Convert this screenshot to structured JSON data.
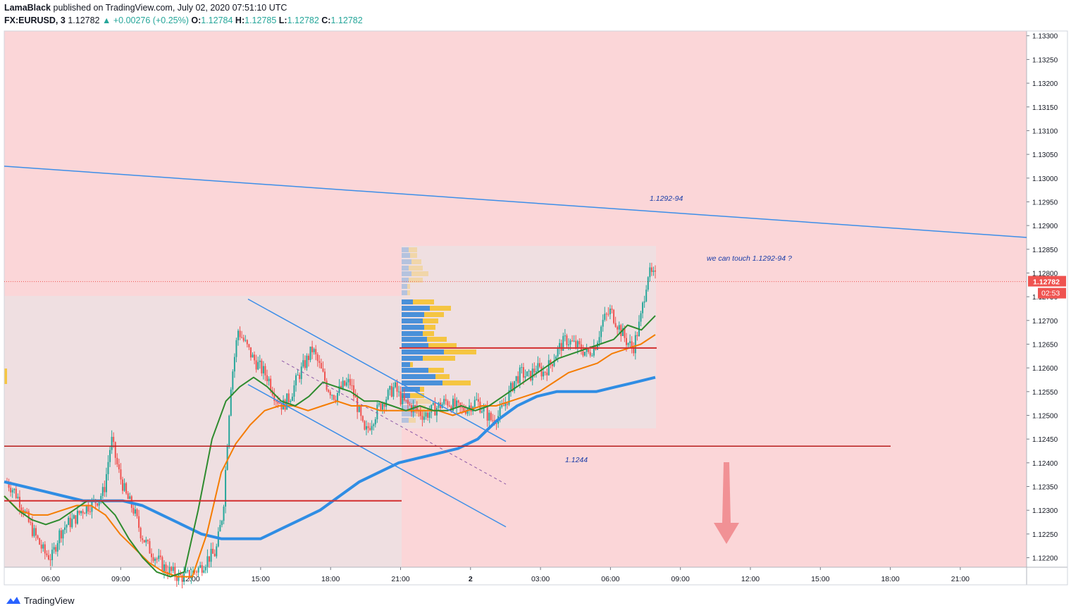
{
  "header": {
    "author": "LamaBlack",
    "published_text": "published on TradingView.com, July 02, 2020 07:51:10 UTC",
    "symbol": "FX:EURUSD, 3",
    "last": "1.12782",
    "change": "+0.00276 (+0.25%)",
    "o_label": "O:",
    "o_value": "1.12784",
    "h_label": "H:",
    "h_value": "1.12785",
    "l_label": "L:",
    "l_value": "1.12782",
    "c_label": "C:",
    "c_value": "1.12782"
  },
  "footer": {
    "brand": "TradingView"
  },
  "colors": {
    "background": "#fbd6d8",
    "up": "#26a69a",
    "down": "#ef5350",
    "trendline": "#3c8ee8",
    "ma_fast": "#2e8b2e",
    "ma_mid": "#f57c00",
    "ma_slow": "#2f8de4",
    "level": "#d32f2f",
    "level_dark": "#b71c1c",
    "price_tag": "#ef5350",
    "vp_blue": "#4a90d9",
    "vp_yellow": "#f5c542"
  },
  "chart_data": {
    "type": "candlestick",
    "y_range": [
      1.1218,
      1.1331
    ],
    "y_ticks": [
      "1.13300",
      "1.13250",
      "1.13200",
      "1.13150",
      "1.13100",
      "1.13050",
      "1.13000",
      "1.12950",
      "1.12900",
      "1.12850",
      "1.12800",
      "1.12750",
      "1.12700",
      "1.12650",
      "1.12600",
      "1.12550",
      "1.12500",
      "1.12450",
      "1.12400",
      "1.12350",
      "1.12300",
      "1.12250",
      "1.12200"
    ],
    "x_ticks": [
      "06:00",
      "09:00",
      "12:00",
      "15:00",
      "18:00",
      "21:00",
      "2",
      "03:00",
      "06:00",
      "09:00",
      "12:00",
      "15:00",
      "18:00",
      "21:00"
    ],
    "last_price": "1.12782",
    "countdown": "02:53",
    "annotations": [
      {
        "text": "1.1292-94",
        "price": 1.1296
      },
      {
        "text": "we can touch 1.1292-94 ?",
        "price": 1.12825
      },
      {
        "text": "1.1244",
        "price": 1.1241
      }
    ],
    "resistance_trendline": [
      1.13025,
      1.12875
    ],
    "horizontal_levels": [
      {
        "price": 1.12435,
        "color": "level_dark"
      },
      {
        "price": 1.1232,
        "color": "level"
      },
      {
        "price": 1.12642,
        "color": "level"
      }
    ],
    "channel_upper": [
      1.12745,
      1.12445
    ],
    "channel_lower": [
      1.12565,
      1.12265
    ],
    "channel_mid": [
      1.12615,
      1.12355
    ],
    "price_path": [
      1.1236,
      1.1234,
      1.1231,
      1.1227,
      1.1224,
      1.1221,
      1.122,
      1.1225,
      1.1227,
      1.1228,
      1.123,
      1.1231,
      1.1232,
      1.1234,
      1.1245,
      1.1238,
      1.1233,
      1.123,
      1.1225,
      1.1222,
      1.122,
      1.1218,
      1.1217,
      1.1216,
      1.1216,
      1.1217,
      1.1218,
      1.122,
      1.1221,
      1.123,
      1.1256,
      1.1268,
      1.1265,
      1.1262,
      1.126,
      1.1258,
      1.1254,
      1.1252,
      1.1254,
      1.1258,
      1.1261,
      1.1264,
      1.126,
      1.1256,
      1.1254,
      1.1256,
      1.1257,
      1.1252,
      1.1246,
      1.1249,
      1.1252,
      1.1254,
      1.1256,
      1.1253,
      1.1252,
      1.1251,
      1.125,
      1.1251,
      1.1252,
      1.1253,
      1.1252,
      1.1251,
      1.1252,
      1.1253,
      1.1251,
      1.1249,
      1.125,
      1.1253,
      1.1257,
      1.1259,
      1.1258,
      1.126,
      1.1259,
      1.1261,
      1.1264,
      1.1266,
      1.1265,
      1.1264,
      1.1263,
      1.1265,
      1.127,
      1.1272,
      1.1269,
      1.1266,
      1.1264,
      1.127,
      1.128,
      1.1279
    ],
    "ma_fast": [
      1.1233,
      1.123,
      1.1228,
      1.1227,
      1.1228,
      1.123,
      1.1232,
      1.1232,
      1.1229,
      1.1224,
      1.122,
      1.1217,
      1.1216,
      1.1217,
      1.123,
      1.1245,
      1.1253,
      1.1256,
      1.1258,
      1.1256,
      1.1253,
      1.1252,
      1.1254,
      1.1257,
      1.1256,
      1.1255,
      1.1253,
      1.1253,
      1.1252,
      1.1251,
      1.1252,
      1.1251,
      1.1251,
      1.1252,
      1.1251,
      1.1252,
      1.1254,
      1.1256,
      1.1258,
      1.126,
      1.1262,
      1.1263,
      1.1264,
      1.1265,
      1.1266,
      1.1269,
      1.1268,
      1.1271
    ],
    "ma_mid": [
      1.1233,
      1.123,
      1.1229,
      1.1229,
      1.123,
      1.1231,
      1.1231,
      1.1229,
      1.1225,
      1.1222,
      1.1219,
      1.1217,
      1.1216,
      1.1216,
      1.1225,
      1.1238,
      1.1244,
      1.1248,
      1.1251,
      1.1252,
      1.1252,
      1.1251,
      1.1252,
      1.1253,
      1.1252,
      1.1252,
      1.1251,
      1.1251,
      1.1251,
      1.1251,
      1.1251,
      1.125,
      1.1251,
      1.1252,
      1.1252,
      1.1253,
      1.1254,
      1.1255,
      1.1257,
      1.1259,
      1.126,
      1.1261,
      1.1263,
      1.1264,
      1.1265,
      1.1267
    ],
    "ma_slow": [
      1.1236,
      1.1235,
      1.1234,
      1.1233,
      1.1232,
      1.1232,
      1.1232,
      1.1231,
      1.1229,
      1.1227,
      1.1225,
      1.1224,
      1.1224,
      1.1224,
      1.1226,
      1.1228,
      1.123,
      1.1233,
      1.1236,
      1.1238,
      1.124,
      1.1241,
      1.1242,
      1.1243,
      1.1245,
      1.1249,
      1.1252,
      1.1254,
      1.1255,
      1.1255,
      1.1255,
      1.1256,
      1.1257,
      1.1258
    ]
  }
}
